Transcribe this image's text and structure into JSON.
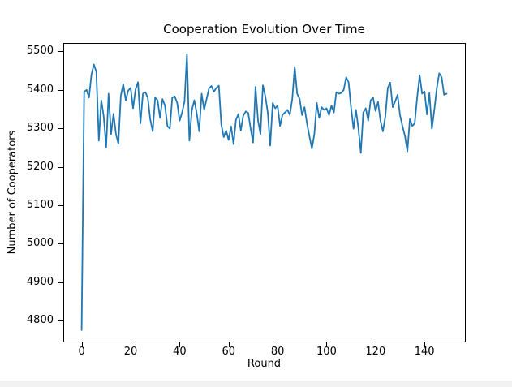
{
  "window": {
    "background": "#ffffff",
    "bottom_strip": {
      "fill": "#f2f2f2",
      "border": "#d8d8d8"
    }
  },
  "chart_data": {
    "type": "line",
    "title": "Cooperation Evolution Over Time",
    "xlabel": "Round",
    "ylabel": "Number of Cooperators",
    "grid": false,
    "legend": "none",
    "line_color": "#1f77b4",
    "axis_color": "#000000",
    "xticks": [
      0,
      20,
      40,
      60,
      80,
      100,
      120,
      140
    ],
    "yticks": [
      4800,
      4900,
      5000,
      5100,
      5200,
      5300,
      5400,
      5500
    ],
    "xlim": [
      -7.5,
      156.5
    ],
    "ylim": [
      4745,
      5522
    ],
    "x_start": 0,
    "x_step": 1,
    "series": [
      {
        "name": "Number of Cooperators",
        "color": "#1f77b4",
        "values": [
          4775,
          5395,
          5400,
          5380,
          5440,
          5466,
          5447,
          5268,
          5373,
          5331,
          5250,
          5390,
          5285,
          5338,
          5285,
          5260,
          5385,
          5415,
          5373,
          5398,
          5405,
          5352,
          5401,
          5420,
          5313,
          5390,
          5394,
          5380,
          5324,
          5292,
          5380,
          5373,
          5327,
          5376,
          5359,
          5306,
          5299,
          5380,
          5383,
          5366,
          5320,
          5341,
          5370,
          5493,
          5268,
          5348,
          5373,
          5338,
          5292,
          5390,
          5348,
          5376,
          5404,
          5410,
          5395,
          5405,
          5411,
          5310,
          5277,
          5294,
          5270,
          5305,
          5259,
          5322,
          5337,
          5294,
          5333,
          5344,
          5340,
          5299,
          5263,
          5408,
          5320,
          5285,
          5412,
          5383,
          5341,
          5255,
          5366,
          5352,
          5359,
          5306,
          5335,
          5341,
          5348,
          5335,
          5376,
          5460,
          5390,
          5376,
          5334,
          5355,
          5313,
          5280,
          5247,
          5285,
          5366,
          5327,
          5355,
          5348,
          5352,
          5334,
          5359,
          5341,
          5394,
          5390,
          5392,
          5400,
          5433,
          5420,
          5355,
          5299,
          5348,
          5300,
          5236,
          5341,
          5352,
          5320,
          5373,
          5380,
          5345,
          5369,
          5320,
          5292,
          5330,
          5405,
          5419,
          5355,
          5370,
          5387,
          5334,
          5306,
          5280,
          5240,
          5324,
          5306,
          5313,
          5380,
          5438,
          5390,
          5396,
          5336,
          5392,
          5299,
          5348,
          5404,
          5443,
          5433,
          5387,
          5390
        ]
      }
    ]
  }
}
